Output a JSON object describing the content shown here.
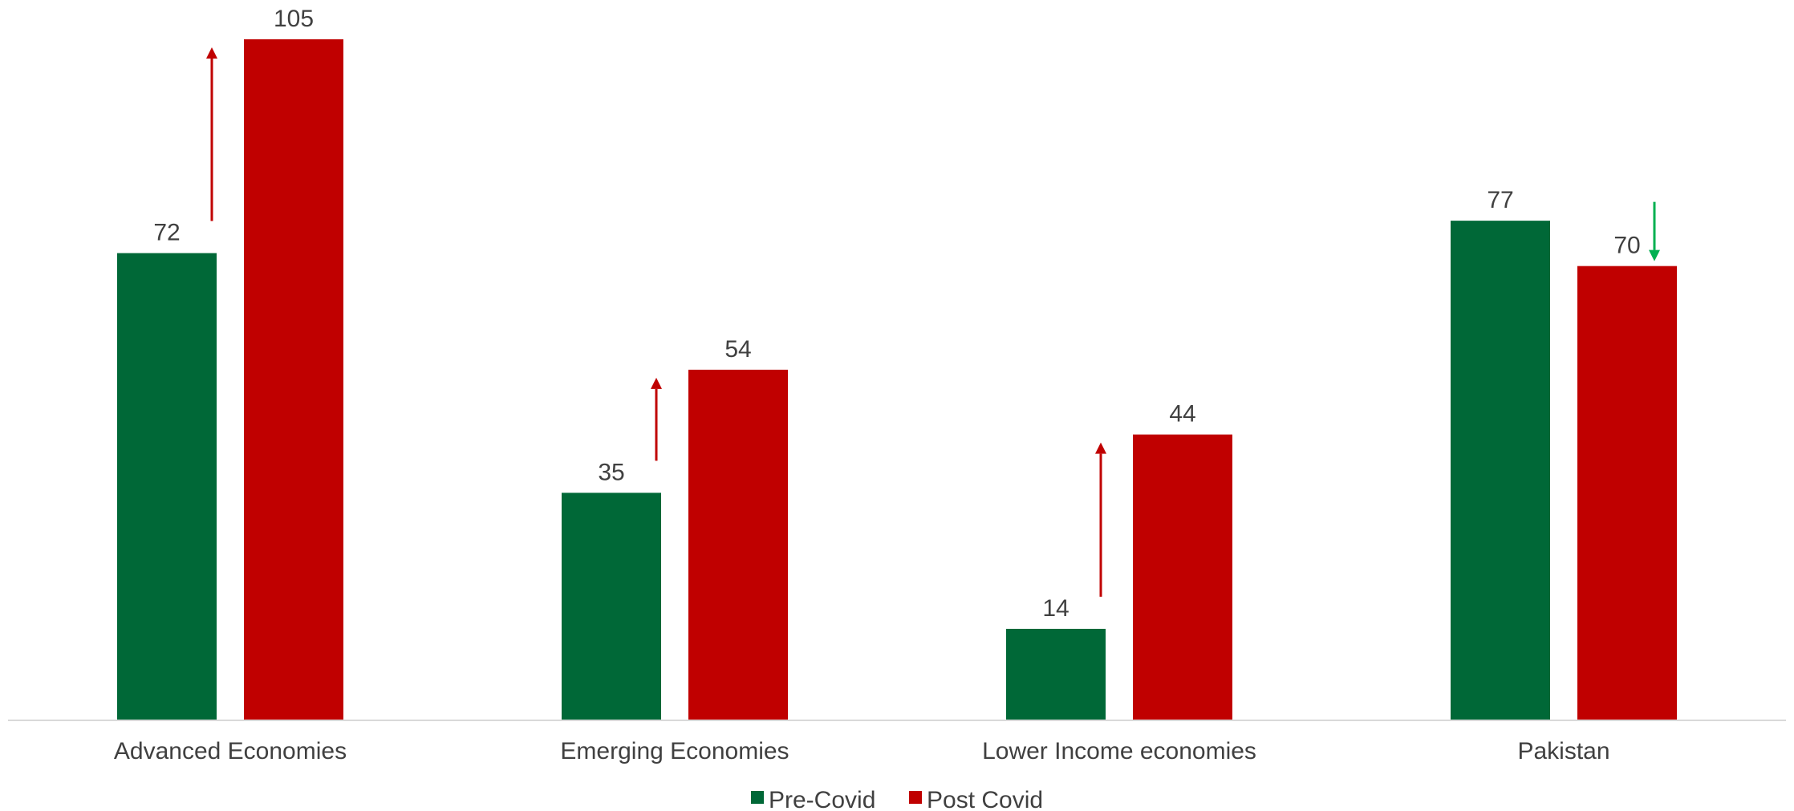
{
  "chart_data": {
    "type": "bar",
    "categories": [
      "Advanced Economies",
      "Emerging Economies",
      "Lower Income economies",
      "Pakistan"
    ],
    "series": [
      {
        "name": "Pre-Covid",
        "values": [
          72,
          35,
          14,
          77
        ],
        "color": "#006837"
      },
      {
        "name": "Post Covid",
        "values": [
          105,
          54,
          44,
          70
        ],
        "color": "#C00000"
      }
    ],
    "ylim": [
      0,
      110
    ],
    "grid": false,
    "legend": "bottom-center",
    "annotations": [
      {
        "category": "Advanced Economies",
        "direction": "up",
        "color": "#C00000"
      },
      {
        "category": "Emerging Economies",
        "direction": "up",
        "color": "#C00000"
      },
      {
        "category": "Lower Income economies",
        "direction": "up",
        "color": "#C00000"
      },
      {
        "category": "Pakistan",
        "direction": "down",
        "color": "#00B050"
      }
    ]
  }
}
